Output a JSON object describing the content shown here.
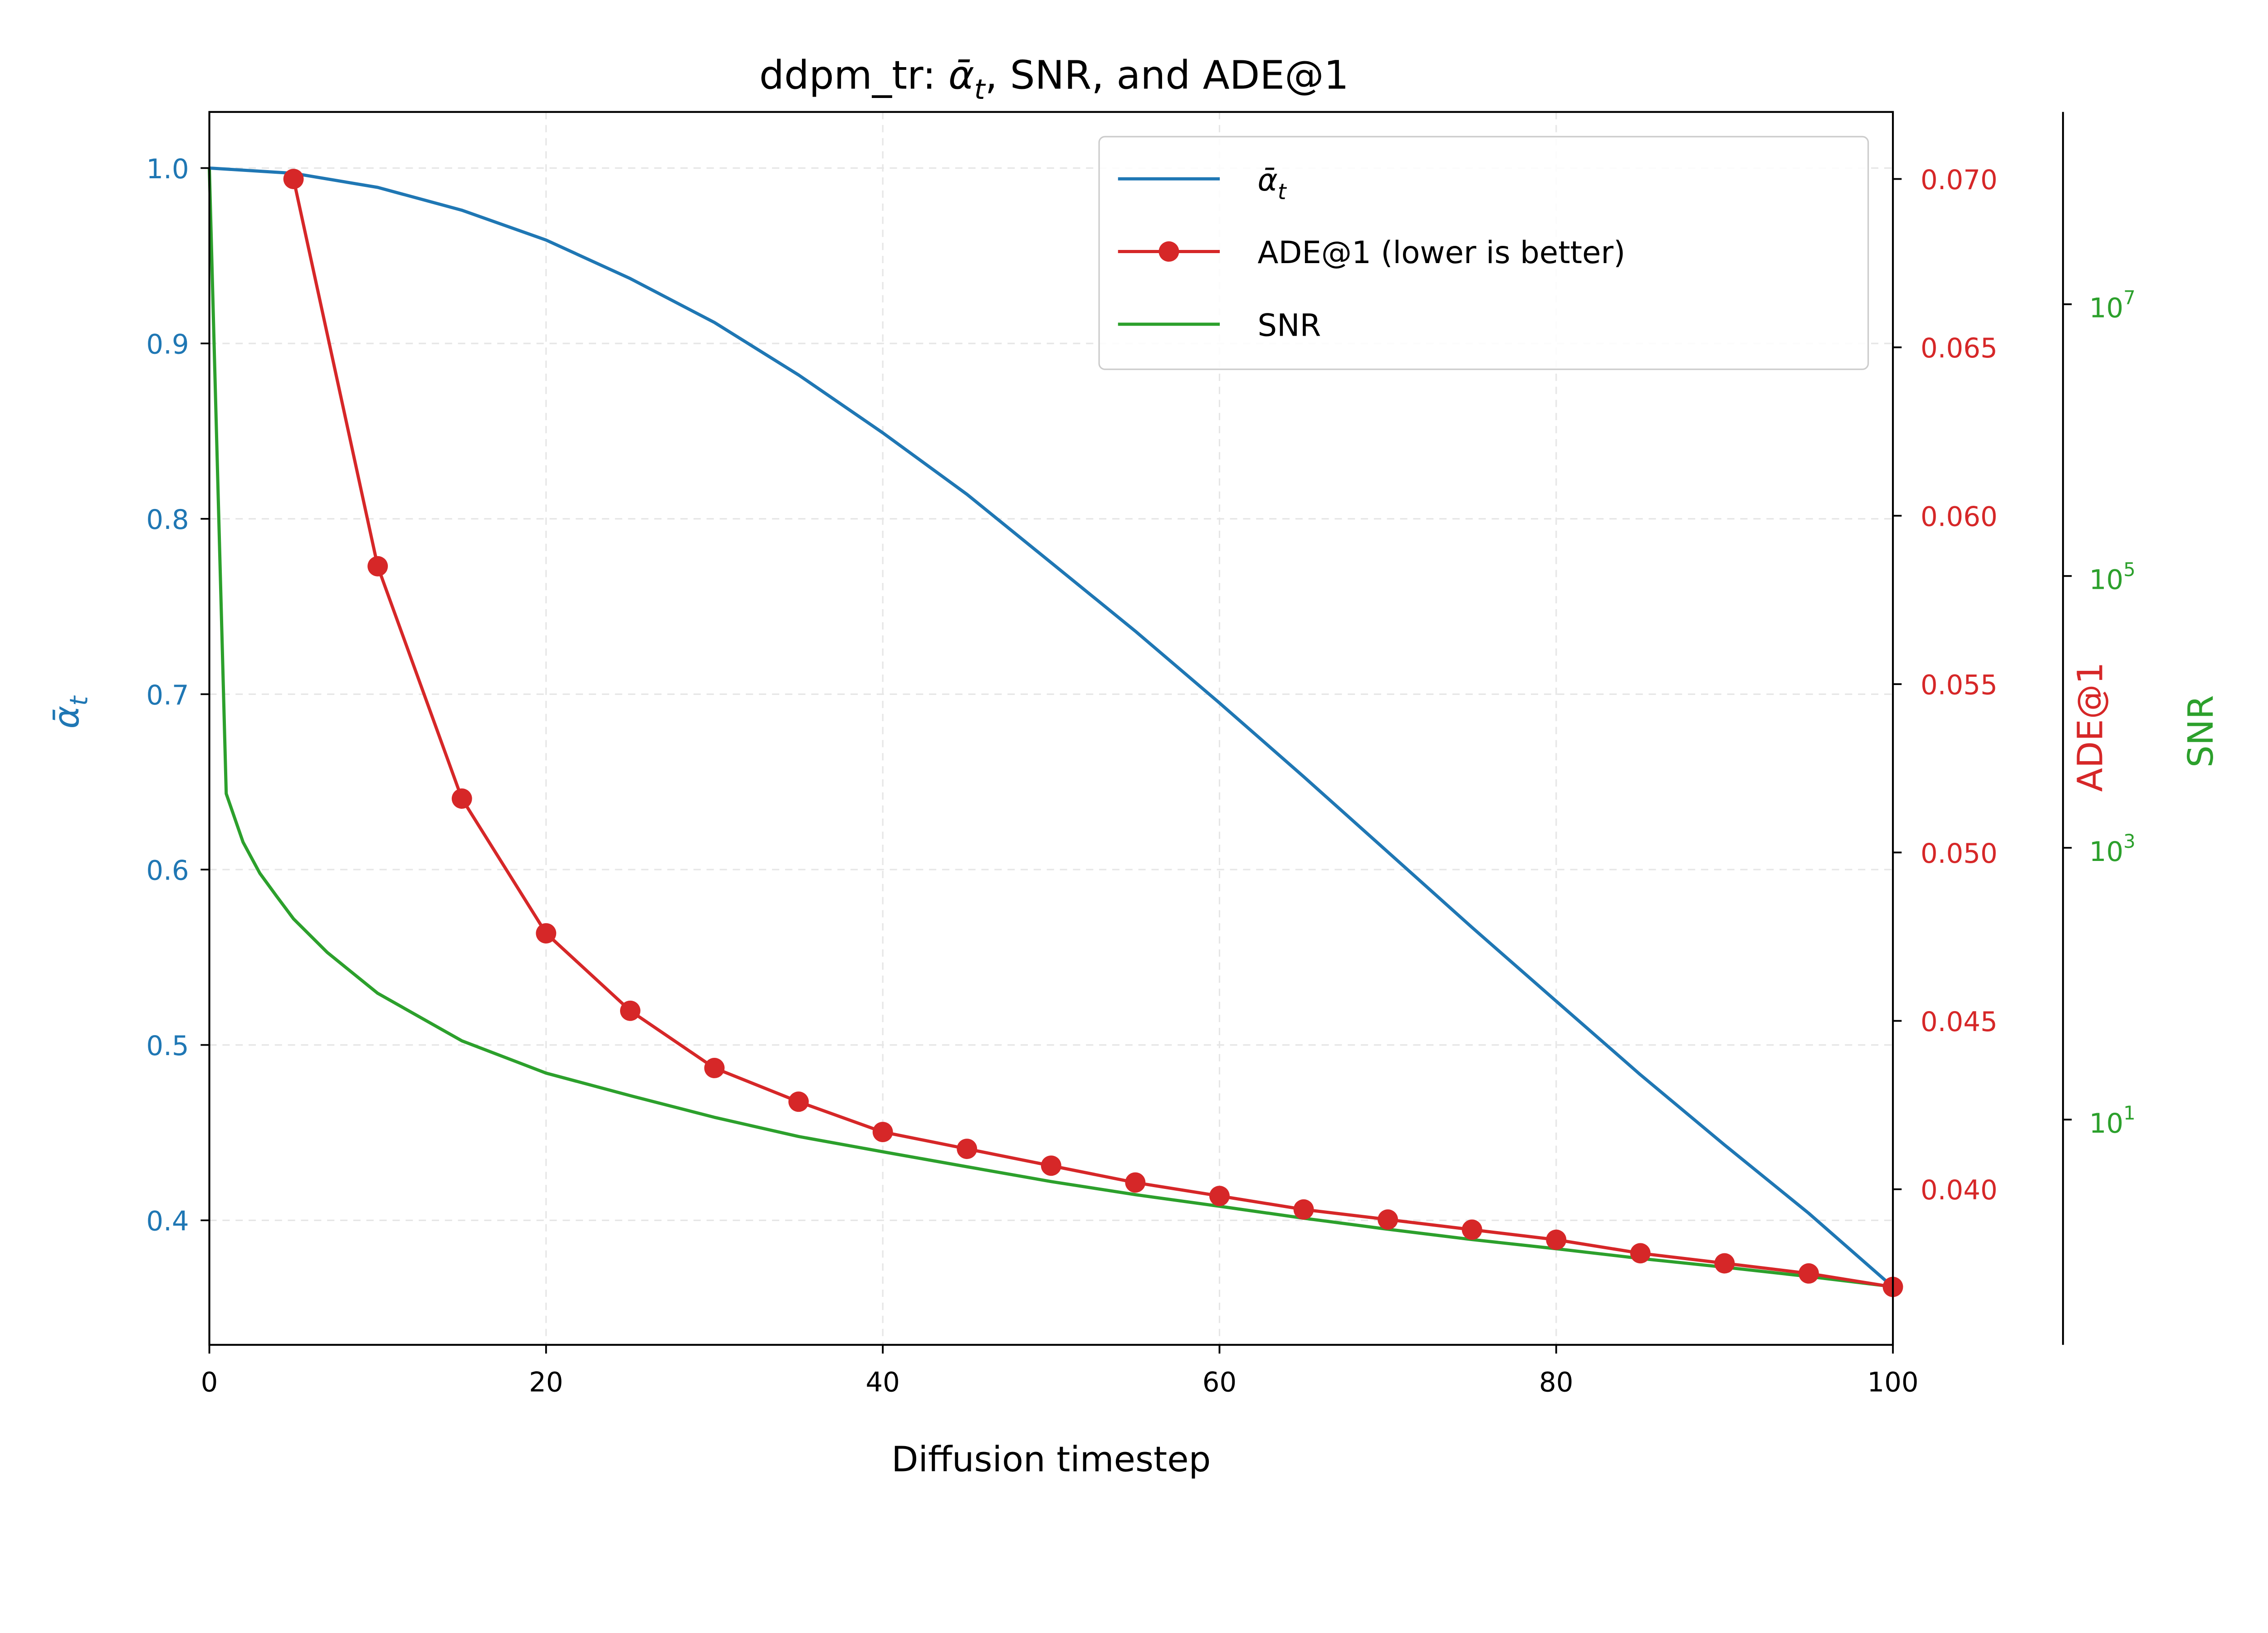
{
  "colors": {
    "alpha": "#1f77b4",
    "ade": "#d62728",
    "snr": "#2ca02c",
    "grid": "#e6e6e6"
  },
  "chart_data": {
    "type": "line",
    "title": "ddpm_tr: ᾱt, SNR, and ADE@1",
    "title_parts": {
      "prefix": "ddpm_tr: ",
      "alpha": "ᾱ",
      "sub": "t",
      "suffix": ", SNR, and ADE@1"
    },
    "xlabel": "Diffusion timestep",
    "xlim": [
      0,
      100
    ],
    "xticks": [
      "0",
      "20",
      "40",
      "60",
      "80",
      "100"
    ],
    "grid": true,
    "legend_placement": "upper-right",
    "axes": {
      "left": {
        "label_main": "ᾱ",
        "label_sub": "t",
        "ylim": [
          0.329,
          1.032
        ],
        "ticks": [
          "1.0",
          "0.9",
          "0.8",
          "0.7",
          "0.6",
          "0.5",
          "0.4"
        ],
        "tick_values": [
          1.0,
          0.9,
          0.8,
          0.7,
          0.6,
          0.5,
          0.4
        ]
      },
      "right_ade": {
        "label": "ADE@1",
        "ylim": [
          0.03538,
          0.07199
        ],
        "ticks": [
          "0.070",
          "0.065",
          "0.060",
          "0.055",
          "0.050",
          "0.045",
          "0.040"
        ],
        "tick_values": [
          0.07,
          0.065,
          0.06,
          0.055,
          0.05,
          0.045,
          0.04
        ]
      },
      "right_snr": {
        "label": "SNR",
        "scale": "log",
        "ylim": [
          0.22,
          260000000.0
        ],
        "ticks": [
          {
            "base": "10",
            "exp": "7"
          },
          {
            "base": "10",
            "exp": "5"
          },
          {
            "base": "10",
            "exp": "3"
          },
          {
            "base": "10",
            "exp": "1"
          }
        ],
        "tick_values": [
          10000000.0,
          100000.0,
          1000.0,
          10.0
        ]
      }
    },
    "series": [
      {
        "name": "ᾱt",
        "legend_main": "ᾱ",
        "legend_sub": "t",
        "axis": "left",
        "x": [
          0,
          5,
          10,
          15,
          20,
          25,
          30,
          35,
          40,
          45,
          50,
          55,
          60,
          65,
          70,
          75,
          80,
          85,
          90,
          95,
          100
        ],
        "y": [
          1.0,
          0.997,
          0.989,
          0.976,
          0.959,
          0.937,
          0.912,
          0.882,
          0.849,
          0.814,
          0.775,
          0.736,
          0.695,
          0.653,
          0.61,
          0.567,
          0.525,
          0.483,
          0.443,
          0.404,
          0.362
        ]
      },
      {
        "name": "ADE@1 (lower is better)",
        "axis": "right_ade",
        "markers": true,
        "x": [
          5,
          10,
          15,
          20,
          25,
          30,
          35,
          40,
          45,
          50,
          55,
          60,
          65,
          70,
          75,
          80,
          85,
          90,
          95,
          100
        ],
        "y": [
          0.07,
          0.0585,
          0.0516,
          0.0476,
          0.0453,
          0.0436,
          0.0426,
          0.0417,
          0.0412,
          0.0407,
          0.0402,
          0.0398,
          0.0394,
          0.0391,
          0.0388,
          0.0385,
          0.0381,
          0.0378,
          0.0375,
          0.0371
        ]
      },
      {
        "name": "SNR",
        "axis": "right_snr",
        "x": [
          0,
          1,
          2,
          3,
          4,
          5,
          7,
          10,
          15,
          20,
          25,
          30,
          35,
          40,
          45,
          50,
          55,
          60,
          65,
          70,
          75,
          80,
          85,
          90,
          95,
          100
        ],
        "y": [
          100000000.0,
          2500,
          1100,
          650,
          440,
          300,
          170,
          85,
          38,
          22,
          15,
          10.4,
          7.5,
          5.8,
          4.5,
          3.5,
          2.8,
          2.3,
          1.88,
          1.56,
          1.31,
          1.12,
          0.95,
          0.82,
          0.7,
          0.59
        ]
      }
    ]
  }
}
